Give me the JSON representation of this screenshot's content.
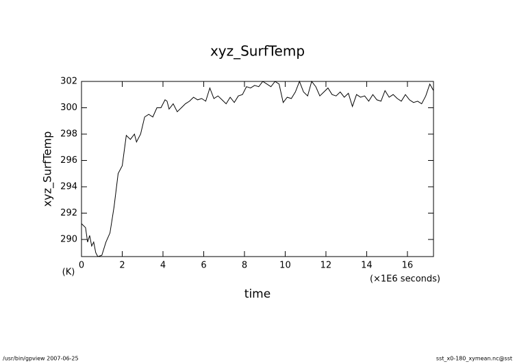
{
  "chart_data": {
    "type": "line",
    "title": "xyz_SurfTemp",
    "ylabel": "xyz_SurfTemp",
    "yunits": "(K)",
    "xlabel": "time",
    "xunits": "(×1E6 seconds)",
    "x": [
      0,
      0.2,
      0.3,
      0.4,
      0.5,
      0.6,
      0.7,
      0.8,
      1.0,
      1.2,
      1.4,
      1.6,
      1.8,
      2.0,
      2.2,
      2.4,
      2.6,
      2.7,
      2.9,
      3.1,
      3.3,
      3.5,
      3.7,
      3.9,
      4.1,
      4.2,
      4.3,
      4.5,
      4.7,
      4.9,
      5.1,
      5.3,
      5.5,
      5.7,
      5.9,
      6.1,
      6.3,
      6.5,
      6.7,
      6.9,
      7.1,
      7.3,
      7.5,
      7.7,
      7.9,
      8.1,
      8.3,
      8.5,
      8.7,
      8.9,
      9.1,
      9.3,
      9.5,
      9.7,
      9.9,
      10.1,
      10.3,
      10.5,
      10.7,
      10.9,
      11.1,
      11.3,
      11.5,
      11.7,
      11.9,
      12.1,
      12.3,
      12.5,
      12.7,
      12.9,
      13.1,
      13.3,
      13.5,
      13.7,
      13.9,
      14.1,
      14.3,
      14.5,
      14.7,
      14.9,
      15.1,
      15.3,
      15.5,
      15.7,
      15.9,
      16.1,
      16.3,
      16.5,
      16.7,
      16.9,
      17.1,
      17.28
    ],
    "values": [
      291.2,
      290.9,
      289.8,
      290.3,
      289.5,
      289.8,
      289.0,
      288.7,
      288.8,
      289.8,
      290.5,
      292.5,
      295.0,
      295.6,
      297.9,
      297.6,
      298.0,
      297.4,
      298.0,
      299.3,
      299.5,
      299.3,
      300.0,
      300.0,
      300.6,
      300.5,
      299.9,
      300.3,
      299.7,
      300.0,
      300.3,
      300.5,
      300.8,
      300.6,
      300.7,
      300.5,
      301.5,
      300.7,
      300.9,
      300.6,
      300.3,
      300.8,
      300.4,
      300.9,
      301.0,
      301.6,
      301.5,
      301.7,
      301.6,
      302.0,
      301.8,
      301.6,
      302.0,
      301.8,
      300.4,
      300.8,
      300.7,
      301.2,
      302.0,
      301.2,
      300.9,
      302.0,
      301.6,
      300.9,
      301.2,
      301.5,
      301.0,
      300.9,
      301.2,
      300.8,
      301.1,
      300.1,
      301.0,
      300.8,
      300.9,
      300.5,
      301.0,
      300.6,
      300.5,
      301.3,
      300.8,
      301.0,
      300.7,
      300.5,
      301.0,
      300.6,
      300.4,
      300.5,
      300.3,
      300.9,
      301.8,
      301.3
    ],
    "color": "#000000",
    "xlim": [
      0,
      17.28
    ],
    "xticks": [
      0,
      2,
      4,
      6,
      8,
      10,
      12,
      14,
      16
    ],
    "ylim": [
      288.7,
      302
    ],
    "yticks": [
      290,
      292,
      294,
      296,
      298,
      300,
      302
    ]
  },
  "footer": {
    "left": "/usr/bin/gpview   2007-06-25",
    "right": "sst_x0-180_xymean.nc@sst"
  }
}
